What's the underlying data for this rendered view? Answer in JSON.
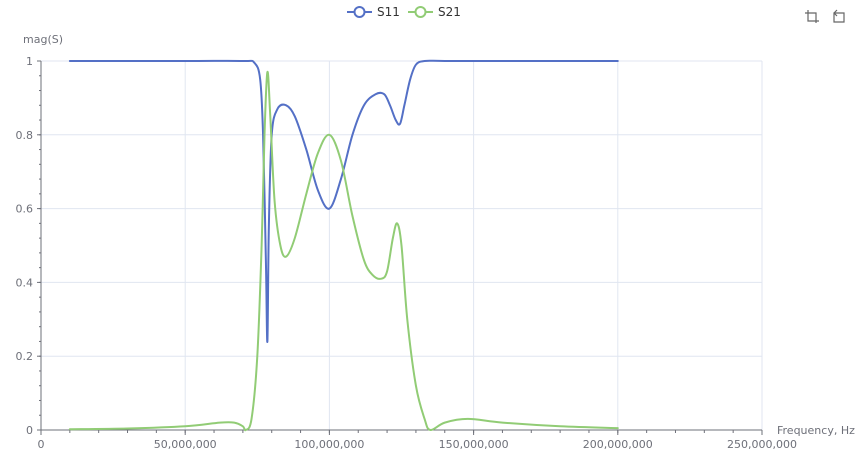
{
  "chart_data": {
    "type": "line",
    "xlabel": "Frequency, Hz",
    "ylabel": "mag(S)",
    "xlim": [
      0,
      250000000
    ],
    "ylim": [
      0,
      1
    ],
    "x_ticks": [
      0,
      50000000,
      100000000,
      150000000,
      200000000,
      250000000
    ],
    "x_tick_labels": [
      "0",
      "50,000,000",
      "100,000,000",
      "150,000,000",
      "200,000,000",
      "250,000,000"
    ],
    "y_ticks": [
      0,
      0.2,
      0.4,
      0.6,
      0.8,
      1
    ],
    "y_tick_labels": [
      "0",
      "0.2",
      "0.4",
      "0.6",
      "0.8",
      "1"
    ],
    "grid": true,
    "legend_position": "top-center",
    "series": [
      {
        "name": "S11",
        "color": "#5470c6",
        "x": [
          10000000,
          50000000,
          70000000,
          74000000,
          76000000,
          77000000,
          78000000,
          78500000,
          79000000,
          80000000,
          82000000,
          85000000,
          88000000,
          92000000,
          96000000,
          100000000,
          104000000,
          108000000,
          112000000,
          116000000,
          119000000,
          121000000,
          123000000,
          124500000,
          126000000,
          128000000,
          130000000,
          133000000,
          140000000,
          160000000,
          200000000
        ],
        "y": [
          1.0,
          1.0,
          1.0,
          0.995,
          0.95,
          0.8,
          0.45,
          0.24,
          0.55,
          0.8,
          0.87,
          0.88,
          0.85,
          0.76,
          0.65,
          0.6,
          0.68,
          0.8,
          0.88,
          0.91,
          0.91,
          0.88,
          0.84,
          0.83,
          0.88,
          0.95,
          0.99,
          1.0,
          1.0,
          1.0,
          1.0
        ]
      },
      {
        "name": "S21",
        "color": "#91cc75",
        "x": [
          10000000,
          30000000,
          50000000,
          62000000,
          67000000,
          70000000,
          71000000,
          73000000,
          75000000,
          76500000,
          77500000,
          78500000,
          79500000,
          81000000,
          83000000,
          85000000,
          88000000,
          92000000,
          96000000,
          100000000,
          104000000,
          108000000,
          112000000,
          115000000,
          118000000,
          120000000,
          122000000,
          123500000,
          125000000,
          127000000,
          130000000,
          133000000,
          135000000,
          140000000,
          148000000,
          160000000,
          180000000,
          200000000
        ],
        "y": [
          0.002,
          0.004,
          0.01,
          0.02,
          0.02,
          0.01,
          0.0,
          0.03,
          0.2,
          0.5,
          0.8,
          0.97,
          0.85,
          0.62,
          0.5,
          0.47,
          0.52,
          0.64,
          0.75,
          0.8,
          0.73,
          0.58,
          0.46,
          0.42,
          0.41,
          0.43,
          0.52,
          0.56,
          0.5,
          0.3,
          0.12,
          0.03,
          0.0,
          0.02,
          0.03,
          0.02,
          0.01,
          0.005
        ]
      }
    ]
  },
  "toolbox": {
    "icons": [
      "zoom-icon",
      "restore-icon"
    ]
  }
}
